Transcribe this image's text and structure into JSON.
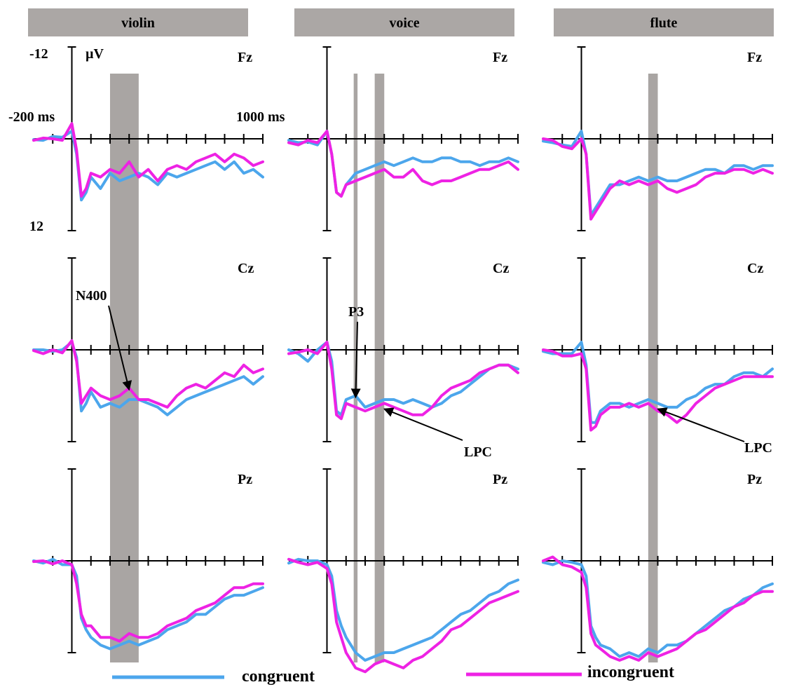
{
  "colors": {
    "congruent": "#4ca6ec",
    "incongruent": "#ee22e4",
    "shade": "#a9a5a3",
    "header": "#aba7a5"
  },
  "axis": {
    "y_top_label": "-12",
    "y_bottom_label": "12",
    "unit": "µV",
    "x_left_label": "-200 ms",
    "x_right_label": "1000 ms"
  },
  "legend": {
    "congruent": "congruent",
    "incongruent": "incongruent"
  },
  "chart_data": {
    "type": "line",
    "description_note": "",
    "x_unit": "ms",
    "y_unit": "µV",
    "xlim": [
      -200,
      1000
    ],
    "ylim": [
      -12,
      12
    ],
    "y_inverted": true,
    "x_ticks": [
      -100,
      0,
      100,
      200,
      300,
      400,
      500,
      600,
      700,
      800,
      900,
      1000
    ],
    "x": [
      -200,
      -150,
      -100,
      -50,
      0,
      25,
      50,
      75,
      100,
      150,
      200,
      250,
      300,
      350,
      400,
      450,
      500,
      550,
      600,
      650,
      700,
      750,
      800,
      850,
      900,
      950,
      1000
    ],
    "columns": [
      {
        "title": "violin",
        "shaded_windows": [
          [
            200,
            350
          ]
        ],
        "panels": [
          {
            "electrode": "Fz",
            "series": [
              {
                "name": "congruent",
                "values": [
                  0.1,
                  0.2,
                  -0.3,
                  -0.2,
                  -1.0,
                  2.0,
                  8.0,
                  7.0,
                  5.0,
                  6.5,
                  4.5,
                  5.5,
                  5.0,
                  4.5,
                  5.0,
                  6.0,
                  4.5,
                  5.0,
                  4.5,
                  4.0,
                  3.5,
                  3.0,
                  4.0,
                  3.0,
                  4.5,
                  4.0,
                  5.0
                ]
              },
              {
                "name": "incongruent",
                "values": [
                  0.2,
                  -0.1,
                  0.0,
                  0.2,
                  -2.0,
                  1.5,
                  7.5,
                  6.5,
                  4.5,
                  5.0,
                  4.0,
                  4.5,
                  3.0,
                  5.0,
                  4.0,
                  5.5,
                  4.0,
                  3.5,
                  4.0,
                  3.0,
                  2.5,
                  2.0,
                  3.0,
                  2.0,
                  2.5,
                  3.5,
                  3.0
                ]
              }
            ]
          },
          {
            "electrode": "Cz",
            "series": [
              {
                "name": "congruent",
                "values": [
                  0.0,
                  0.0,
                  0.2,
                  0.0,
                  -1.0,
                  1.0,
                  8.0,
                  7.0,
                  5.5,
                  7.5,
                  7.0,
                  7.5,
                  6.5,
                  6.5,
                  7.0,
                  7.5,
                  8.5,
                  7.5,
                  6.5,
                  6.0,
                  5.5,
                  5.0,
                  4.5,
                  4.0,
                  3.5,
                  4.5,
                  3.5
                ]
              },
              {
                "name": "incongruent",
                "values": [
                  0.1,
                  0.5,
                  0.0,
                  0.4,
                  -1.2,
                  1.5,
                  7.0,
                  6.0,
                  5.0,
                  6.0,
                  6.5,
                  6.0,
                  5.0,
                  6.5,
                  6.5,
                  7.0,
                  7.5,
                  6.0,
                  5.0,
                  4.5,
                  5.0,
                  4.0,
                  3.0,
                  3.5,
                  2.0,
                  3.0,
                  2.5
                ]
              }
            ]
          },
          {
            "electrode": "Pz",
            "series": [
              {
                "name": "congruent",
                "values": [
                  0.0,
                  0.3,
                  -0.2,
                  0.5,
                  0.5,
                  2.0,
                  7.5,
                  9.0,
                  10.0,
                  11.0,
                  11.5,
                  11.0,
                  10.5,
                  11.0,
                  10.5,
                  10.0,
                  9.0,
                  8.5,
                  8.0,
                  7.0,
                  7.0,
                  6.0,
                  5.0,
                  4.5,
                  4.5,
                  4.0,
                  3.5
                ]
              },
              {
                "name": "incongruent",
                "values": [
                  0.1,
                  0.0,
                  0.4,
                  0.0,
                  0.5,
                  3.0,
                  7.0,
                  8.5,
                  8.5,
                  10.0,
                  10.0,
                  10.5,
                  9.5,
                  10.0,
                  10.0,
                  9.5,
                  8.5,
                  8.0,
                  7.5,
                  6.5,
                  6.0,
                  5.5,
                  4.5,
                  3.5,
                  3.5,
                  3.0,
                  3.0
                ]
              }
            ]
          }
        ]
      },
      {
        "title": "voice",
        "shaded_windows": [
          [
            140,
            160
          ],
          [
            250,
            300
          ]
        ],
        "panels": [
          {
            "electrode": "Fz",
            "series": [
              {
                "name": "congruent",
                "values": [
                  0.2,
                  0.5,
                  0.4,
                  0.8,
                  -1.0,
                  2.0,
                  7.0,
                  7.5,
                  6.0,
                  4.5,
                  4.0,
                  3.5,
                  3.0,
                  3.5,
                  3.0,
                  2.5,
                  3.0,
                  3.0,
                  2.5,
                  2.5,
                  3.0,
                  3.0,
                  3.5,
                  3.0,
                  3.0,
                  2.5,
                  3.0
                ]
              },
              {
                "name": "incongruent",
                "values": [
                  0.5,
                  0.8,
                  0.2,
                  0.5,
                  -1.0,
                  2.0,
                  7.0,
                  7.5,
                  6.0,
                  5.5,
                  5.0,
                  4.5,
                  4.0,
                  5.0,
                  5.0,
                  4.0,
                  5.5,
                  6.0,
                  5.5,
                  5.5,
                  5.0,
                  4.5,
                  4.0,
                  4.0,
                  3.5,
                  3.0,
                  4.0
                ]
              }
            ]
          },
          {
            "electrode": "Cz",
            "series": [
              {
                "name": "congruent",
                "values": [
                  0.0,
                  0.5,
                  1.5,
                  0.0,
                  -1.0,
                  1.5,
                  8.0,
                  8.5,
                  6.5,
                  6.0,
                  7.5,
                  7.0,
                  6.5,
                  6.5,
                  7.0,
                  6.5,
                  7.0,
                  7.5,
                  7.0,
                  6.0,
                  5.5,
                  4.5,
                  3.5,
                  2.5,
                  2.0,
                  2.0,
                  2.5
                ]
              },
              {
                "name": "incongruent",
                "values": [
                  0.5,
                  0.3,
                  0.0,
                  0.5,
                  -1.0,
                  2.5,
                  8.5,
                  9.0,
                  7.0,
                  7.5,
                  8.0,
                  7.5,
                  7.0,
                  7.5,
                  8.0,
                  8.5,
                  8.5,
                  7.5,
                  6.0,
                  5.0,
                  4.5,
                  4.0,
                  3.0,
                  2.5,
                  2.0,
                  2.0,
                  3.0
                ]
              }
            ]
          },
          {
            "electrode": "Pz",
            "series": [
              {
                "name": "congruent",
                "values": [
                  0.3,
                  -0.2,
                  0.0,
                  0.0,
                  0.5,
                  2.0,
                  6.5,
                  8.5,
                  10.0,
                  12.0,
                  13.0,
                  12.5,
                  12.0,
                  12.0,
                  11.5,
                  11.0,
                  10.5,
                  10.0,
                  9.0,
                  8.0,
                  7.0,
                  6.5,
                  5.5,
                  4.5,
                  4.0,
                  3.0,
                  2.5
                ]
              },
              {
                "name": "incongruent",
                "values": [
                  -0.2,
                  0.2,
                  0.5,
                  0.2,
                  1.0,
                  3.0,
                  8.0,
                  10.0,
                  12.0,
                  14.0,
                  14.5,
                  13.5,
                  13.0,
                  13.5,
                  14.0,
                  13.0,
                  12.5,
                  11.5,
                  10.5,
                  9.0,
                  8.5,
                  7.5,
                  6.5,
                  5.5,
                  5.0,
                  4.5,
                  4.0
                ]
              }
            ]
          }
        ]
      },
      {
        "title": "flute",
        "shaded_windows": [
          [
            350,
            400
          ]
        ],
        "panels": [
          {
            "electrode": "Fz",
            "series": [
              {
                "name": "congruent",
                "values": [
                  0.3,
                  0.5,
                  0.8,
                  1.0,
                  -1.0,
                  2.0,
                  10.0,
                  9.0,
                  8.0,
                  6.0,
                  6.0,
                  5.5,
                  5.0,
                  5.5,
                  5.0,
                  5.5,
                  5.5,
                  5.0,
                  4.5,
                  4.0,
                  4.0,
                  4.5,
                  3.5,
                  3.5,
                  4.0,
                  3.5,
                  3.5
                ]
              },
              {
                "name": "incongruent",
                "values": [
                  0.0,
                  0.2,
                  1.0,
                  1.3,
                  0.0,
                  2.0,
                  10.5,
                  9.5,
                  8.5,
                  6.5,
                  5.5,
                  6.0,
                  5.5,
                  6.0,
                  5.5,
                  6.5,
                  7.0,
                  6.5,
                  6.0,
                  5.0,
                  4.5,
                  4.5,
                  4.0,
                  4.0,
                  4.5,
                  4.0,
                  4.5
                ]
              }
            ]
          },
          {
            "electrode": "Cz",
            "series": [
              {
                "name": "congruent",
                "values": [
                  0.2,
                  0.5,
                  0.5,
                  0.5,
                  -1.0,
                  2.0,
                  9.5,
                  9.5,
                  8.0,
                  7.0,
                  7.0,
                  7.5,
                  7.0,
                  6.5,
                  7.0,
                  7.5,
                  7.5,
                  6.5,
                  6.0,
                  5.0,
                  4.5,
                  4.5,
                  3.5,
                  3.0,
                  3.0,
                  3.5,
                  2.5
                ]
              },
              {
                "name": "incongruent",
                "values": [
                  0.0,
                  0.2,
                  0.8,
                  0.8,
                  0.5,
                  2.5,
                  10.5,
                  10.0,
                  8.5,
                  7.5,
                  7.5,
                  7.0,
                  7.5,
                  7.0,
                  8.0,
                  8.5,
                  9.5,
                  8.5,
                  7.0,
                  6.0,
                  5.0,
                  4.5,
                  4.0,
                  3.5,
                  3.5,
                  3.5,
                  3.5
                ]
              }
            ]
          },
          {
            "electrode": "Pz",
            "series": [
              {
                "name": "congruent",
                "values": [
                  0.2,
                  0.5,
                  0.0,
                  0.2,
                  0.5,
                  2.0,
                  8.5,
                  10.0,
                  11.0,
                  11.5,
                  12.5,
                  12.0,
                  12.5,
                  11.5,
                  12.0,
                  11.0,
                  11.0,
                  10.5,
                  9.5,
                  8.5,
                  7.5,
                  6.5,
                  6.0,
                  5.0,
                  4.5,
                  3.5,
                  3.0
                ]
              },
              {
                "name": "incongruent",
                "values": [
                  0.0,
                  -0.5,
                  0.5,
                  0.8,
                  1.5,
                  3.5,
                  9.5,
                  11.0,
                  11.5,
                  12.5,
                  13.0,
                  12.5,
                  13.0,
                  12.0,
                  12.5,
                  12.0,
                  11.5,
                  10.5,
                  9.5,
                  9.0,
                  8.0,
                  7.0,
                  6.0,
                  5.5,
                  4.5,
                  4.0,
                  4.0
                ]
              }
            ]
          }
        ]
      }
    ],
    "annotations": [
      {
        "text": "N400",
        "column": 0,
        "panel": 1,
        "x": 300,
        "y": 5.5
      },
      {
        "text": "P3",
        "column": 1,
        "panel": 1,
        "x": 150,
        "y": 6.5
      },
      {
        "text": "LPC",
        "column": 1,
        "panel": 1,
        "x": 300,
        "y": 8.0
      },
      {
        "text": "LPC",
        "column": 2,
        "panel": 1,
        "x": 400,
        "y": 8.0
      }
    ]
  }
}
